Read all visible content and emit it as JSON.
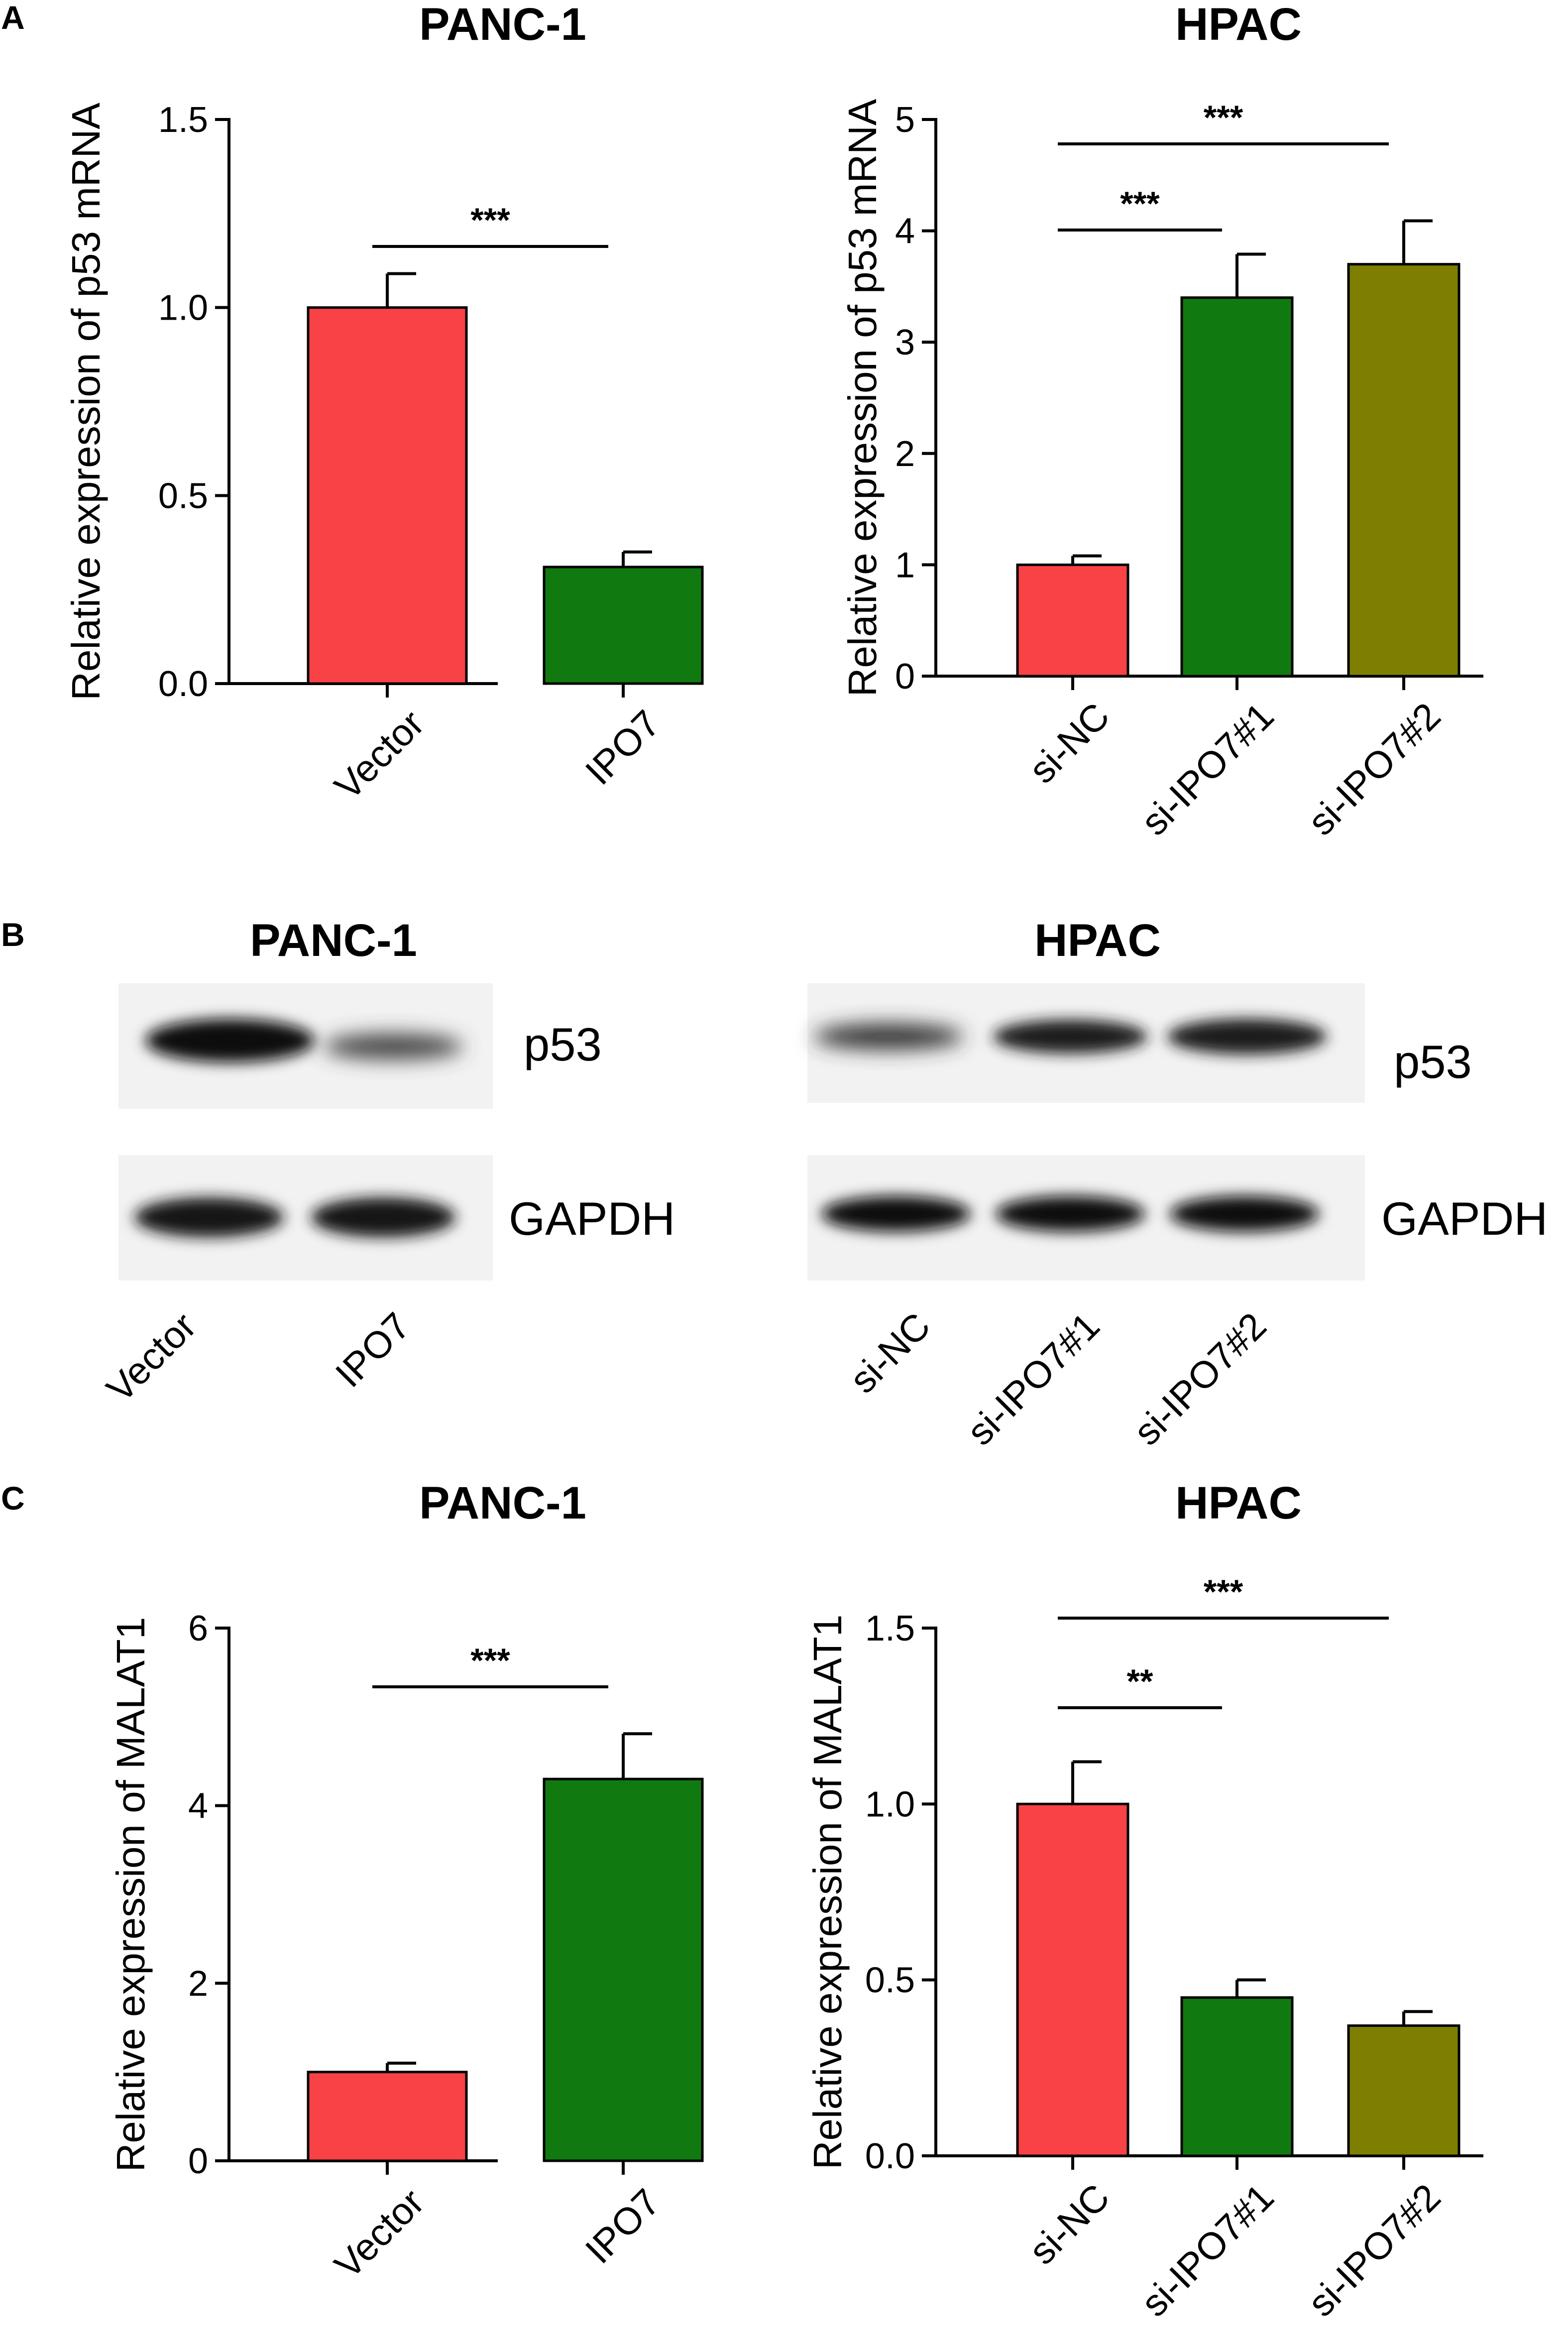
{
  "panels": {
    "A": {
      "letter": "A",
      "charts": {
        "left": {
          "title": "PANC-1",
          "ylabel": "Relative  expression of p53 mRNA"
        },
        "right": {
          "title": "HPAC",
          "ylabel": "Relative  expression of p53 mRNA"
        }
      }
    },
    "B": {
      "letter": "B",
      "left": {
        "title": "PANC-1",
        "bands": [
          "p53",
          "GAPDH"
        ],
        "lanes": [
          "Vector",
          "IPO7"
        ]
      },
      "right": {
        "title": "HPAC",
        "bands": [
          "p53",
          "GAPDH"
        ],
        "lanes": [
          "si-NC",
          "si-IPO7#1",
          "si-IPO7#2"
        ]
      }
    },
    "C": {
      "letter": "C",
      "charts": {
        "left": {
          "title": "PANC-1",
          "ylabel": "Relative  expression of MALAT1"
        },
        "right": {
          "title": "HPAC",
          "ylabel": "Relative  expression of MALAT1"
        }
      }
    }
  },
  "colors": {
    "red": "#f84245",
    "green": "#107a10",
    "olive": "#7e7e02"
  },
  "chart_data": [
    {
      "id": "A-left",
      "type": "bar",
      "title": "PANC-1",
      "ylabel": "Relative  expression of p53 mRNA",
      "categories": [
        "Vector",
        "IPO7"
      ],
      "values": [
        1.0,
        0.31
      ],
      "errors": [
        0.09,
        0.04
      ],
      "colors": [
        "#f84245",
        "#107a10"
      ],
      "ylim": [
        0,
        1.5
      ],
      "yticks": [
        0.0,
        0.5,
        1.0,
        1.5
      ],
      "ytick_labels": [
        "0.0",
        "0.5",
        "1.0",
        "1.5"
      ],
      "significance": [
        {
          "from": 0,
          "to": 1,
          "label": "***"
        }
      ]
    },
    {
      "id": "A-right",
      "type": "bar",
      "title": "HPAC",
      "ylabel": "Relative  expression of p53 mRNA",
      "categories": [
        "si-NC",
        "si-IPO7#1",
        "si-IPO7#2"
      ],
      "values": [
        1.0,
        3.4,
        3.7
      ],
      "errors": [
        0.08,
        0.39,
        0.39
      ],
      "colors": [
        "#f84245",
        "#107a10",
        "#7e7e02"
      ],
      "ylim": [
        0,
        5
      ],
      "yticks": [
        0,
        1,
        2,
        3,
        4,
        5
      ],
      "ytick_labels": [
        "0",
        "1",
        "2",
        "3",
        "4",
        "5"
      ],
      "significance": [
        {
          "from": 0,
          "to": 1,
          "label": "***"
        },
        {
          "from": 0,
          "to": 2,
          "label": "***"
        }
      ]
    },
    {
      "id": "C-left",
      "type": "bar",
      "title": "PANC-1",
      "ylabel": "Relative  expression of MALAT1",
      "categories": [
        "Vector",
        "IPO7"
      ],
      "values": [
        1.0,
        4.3
      ],
      "errors": [
        0.1,
        0.51
      ],
      "colors": [
        "#f84245",
        "#107a10"
      ],
      "ylim": [
        0,
        6
      ],
      "yticks": [
        0,
        2,
        4,
        6
      ],
      "ytick_labels": [
        "0",
        "2",
        "4",
        "6"
      ],
      "significance": [
        {
          "from": 0,
          "to": 1,
          "label": "***"
        }
      ]
    },
    {
      "id": "C-right",
      "type": "bar",
      "title": "HPAC",
      "ylabel": "Relative  expression of MALAT1",
      "categories": [
        "si-NC",
        "si-IPO7#1",
        "si-IPO7#2"
      ],
      "values": [
        1.0,
        0.45,
        0.37
      ],
      "errors": [
        0.12,
        0.05,
        0.04
      ],
      "colors": [
        "#f84245",
        "#107a10",
        "#7e7e02"
      ],
      "ylim": [
        0,
        1.5
      ],
      "yticks": [
        0.0,
        0.5,
        1.0,
        1.5
      ],
      "ytick_labels": [
        "0.0",
        "0.5",
        "1.0",
        "1.5"
      ],
      "significance": [
        {
          "from": 0,
          "to": 1,
          "label": "**"
        },
        {
          "from": 0,
          "to": 2,
          "label": "***"
        }
      ]
    }
  ]
}
